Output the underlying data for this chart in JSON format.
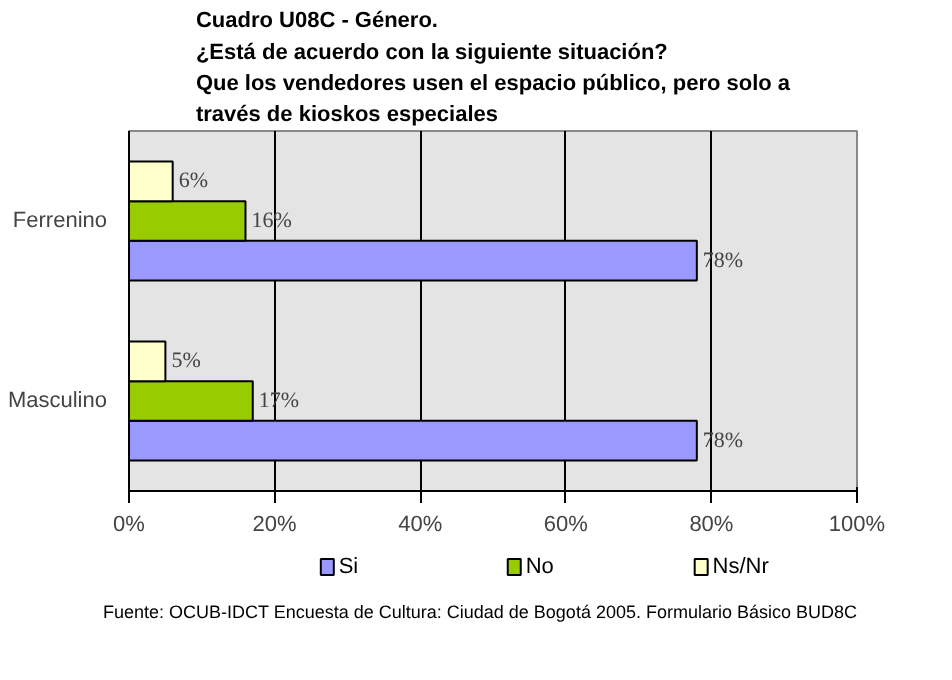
{
  "chart_data": {
    "type": "bar",
    "orientation": "horizontal",
    "title": "Cuadro U08C - Género.\n¿Está de acuerdo con la siguiente situación?\nQue los vendedores usen el espacio público, pero solo a\ntravés de kioskos especiales",
    "categories": [
      "Ferrenino",
      "Masculino"
    ],
    "series": [
      {
        "name": "Si",
        "color": "#9999ff",
        "values": [
          78,
          78
        ],
        "value_labels": [
          "78%",
          "78%"
        ]
      },
      {
        "name": "No",
        "color": "#99cc00",
        "values": [
          16,
          17
        ],
        "value_labels": [
          "16%",
          "17%"
        ]
      },
      {
        "name": "Ns/Nr",
        "color": "#ffffcc",
        "values": [
          6,
          5
        ],
        "value_labels": [
          "6%",
          "5%"
        ]
      }
    ],
    "xlim": [
      0,
      100
    ],
    "xticks": [
      {
        "value": 0,
        "label": "0%"
      },
      {
        "value": 20,
        "label": "20%"
      },
      {
        "value": 40,
        "label": "40%"
      },
      {
        "value": 60,
        "label": "60%"
      },
      {
        "value": 80,
        "label": "80%"
      },
      {
        "value": 100,
        "label": "100%"
      }
    ],
    "grid": "x",
    "legend": "bottom",
    "annotations": [
      "Fuente: OCUB-IDCT Encuesta de Cultura: Ciudad de Bogotá 2005. Formulario Básico BUD8C"
    ]
  }
}
